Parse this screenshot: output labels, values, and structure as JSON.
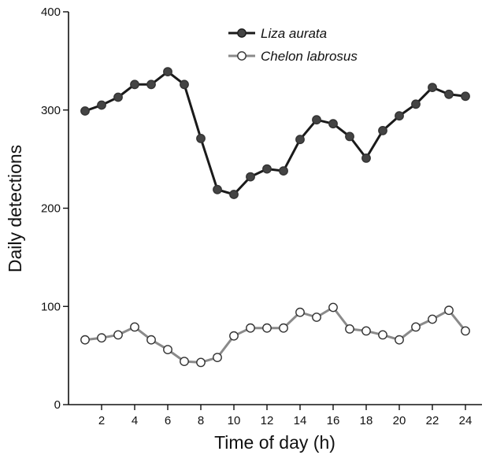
{
  "chart_data": {
    "type": "line",
    "xlabel": "Time of day (h)",
    "ylabel": "Daily detections",
    "xlim": [
      0,
      25
    ],
    "ylim": [
      0,
      400
    ],
    "x_ticks": [
      2,
      4,
      6,
      8,
      10,
      12,
      14,
      16,
      18,
      20,
      22,
      24
    ],
    "y_ticks": [
      0,
      100,
      200,
      300,
      400
    ],
    "x_tick_labels": [
      "2",
      "4",
      "6",
      "8",
      "10",
      "12",
      "14",
      "16",
      "18",
      "20",
      "22",
      "24"
    ],
    "y_tick_labels": [
      "0",
      "100",
      "200",
      "300",
      "400"
    ],
    "grid": false,
    "legend_position": "top-center",
    "x": [
      1,
      2,
      3,
      4,
      5,
      6,
      7,
      8,
      9,
      10,
      11,
      12,
      13,
      14,
      15,
      16,
      17,
      18,
      19,
      20,
      21,
      22,
      23,
      24
    ],
    "series": [
      {
        "name": "Liza aurata",
        "color": "#1a1a1a",
        "marker_fill": "#444444",
        "values": [
          299,
          305,
          313,
          326,
          326,
          339,
          326,
          271,
          219,
          214,
          232,
          240,
          238,
          270,
          290,
          286,
          273,
          251,
          279,
          294,
          306,
          323,
          316,
          314
        ]
      },
      {
        "name": "Chelon labrosus",
        "color": "#8a8a8a",
        "marker_fill": "#ffffff",
        "values": [
          66,
          68,
          71,
          79,
          66,
          56,
          44,
          43,
          48,
          70,
          78,
          78,
          78,
          94,
          89,
          99,
          77,
          75,
          71,
          66,
          79,
          87,
          96,
          75
        ]
      }
    ]
  }
}
